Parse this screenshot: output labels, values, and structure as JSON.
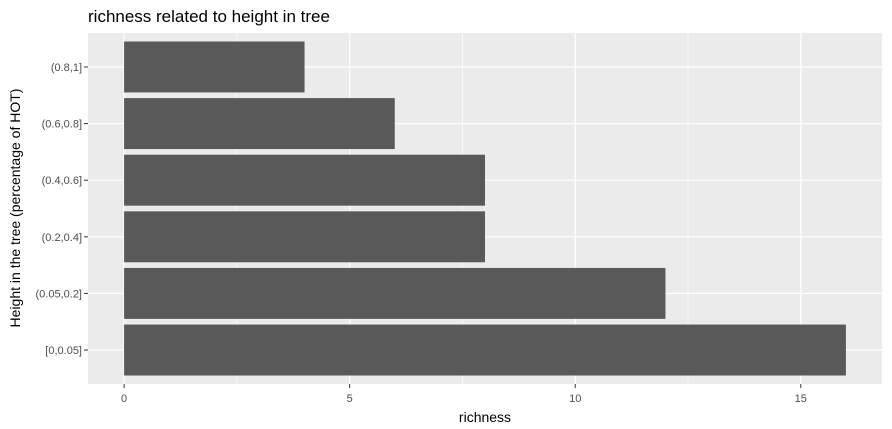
{
  "chart_data": {
    "type": "bar",
    "orientation": "horizontal",
    "title": "richness related to height in tree",
    "xlabel": "richness",
    "ylabel": "Height in the tree (percentage of HOT)",
    "categories": [
      "[0,0.05]",
      "(0.05,0.2]",
      "(0.2,0.4]",
      "(0.4,0.6]",
      "(0.6,0.8]",
      "(0.8,1]"
    ],
    "values": [
      16,
      12,
      8,
      8,
      6,
      4
    ],
    "xlim": [
      -0.8,
      16.8
    ],
    "xticks": [
      0,
      5,
      10,
      15
    ],
    "grid": true,
    "colors": {
      "bar": "#595959",
      "panel": "#ebebeb",
      "grid": "#ffffff"
    }
  }
}
